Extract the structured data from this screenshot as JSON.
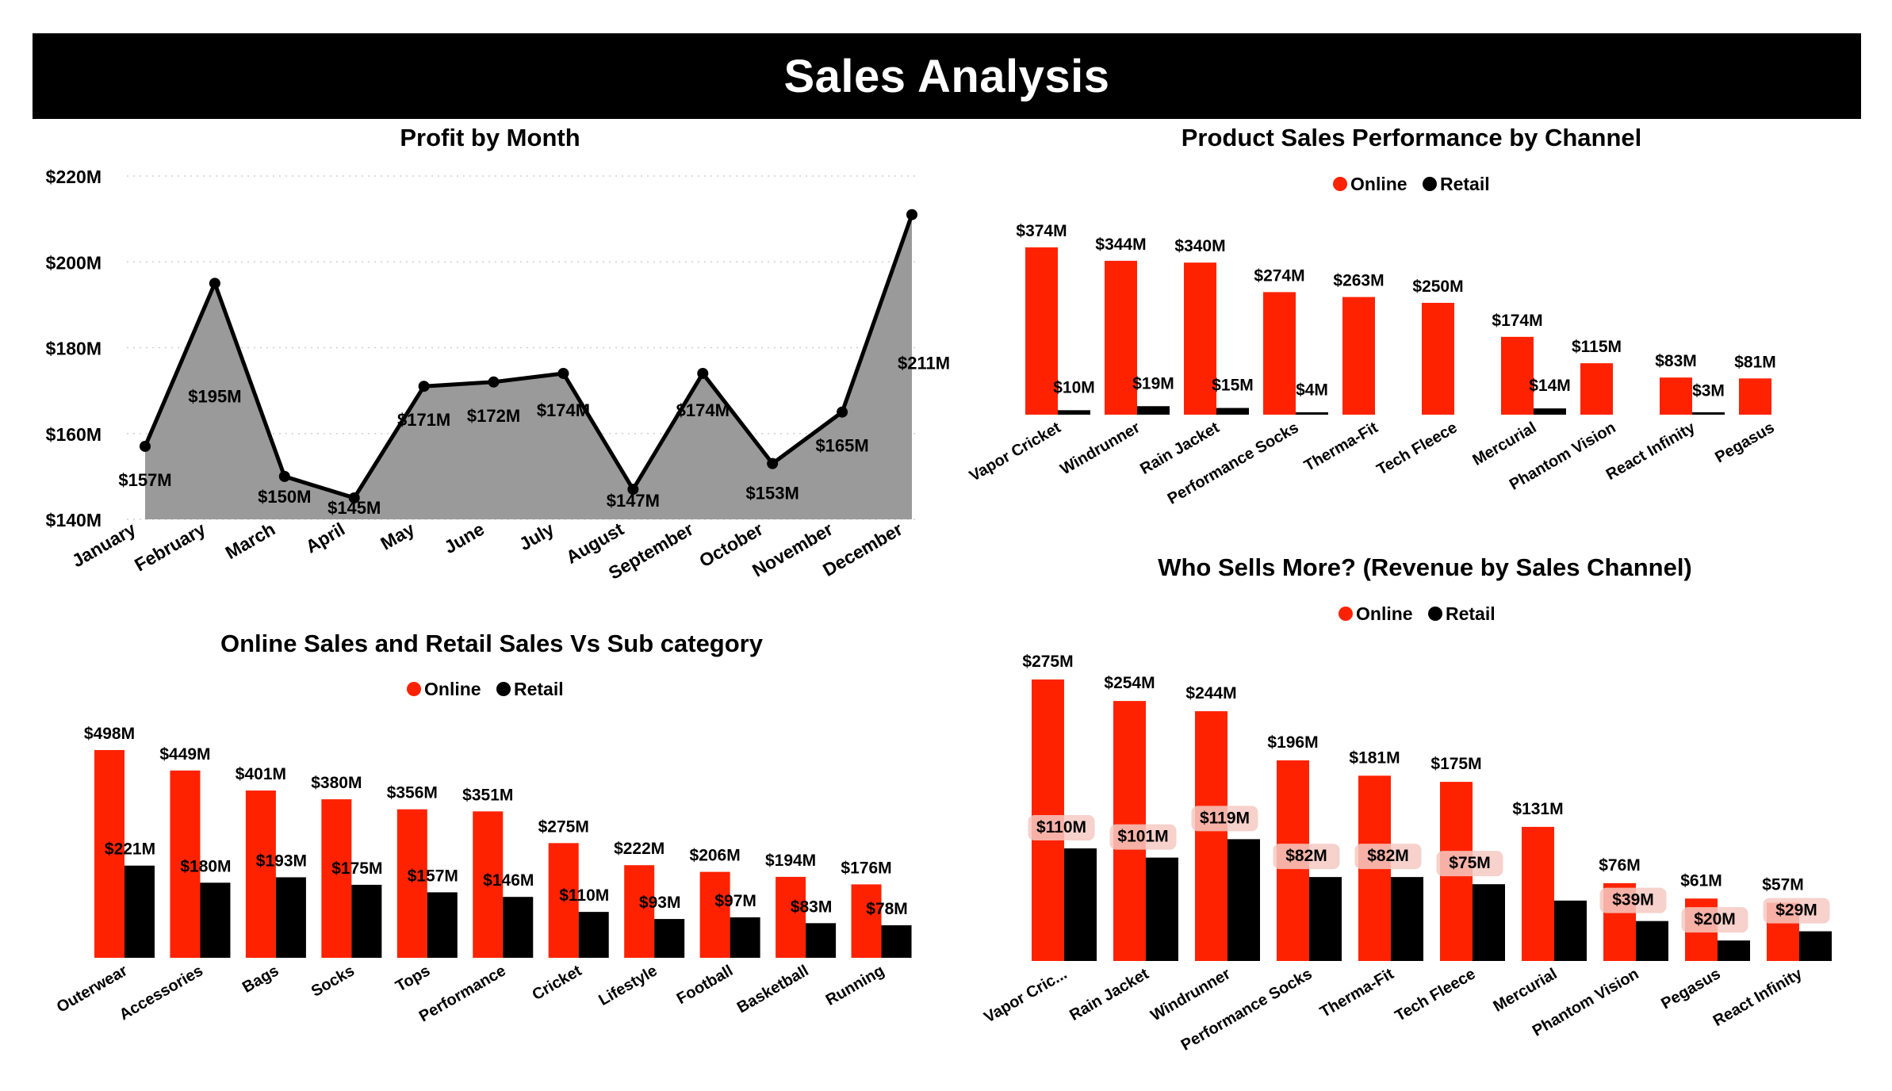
{
  "page_title": "Sales Analysis",
  "colors": {
    "online": "#ff2200",
    "retail": "#000000",
    "area": "#9a9a9a",
    "grid": "#cfcfcf",
    "label_bg": "#f6c9c2"
  },
  "chart_data": [
    {
      "id": "profit",
      "type": "area",
      "title": "Profit by Month",
      "categories": [
        "January",
        "February",
        "March",
        "April",
        "May",
        "June",
        "July",
        "August",
        "September",
        "October",
        "November",
        "December"
      ],
      "values": [
        157,
        195,
        150,
        145,
        171,
        172,
        174,
        147,
        174,
        153,
        165,
        211
      ],
      "labels": [
        "$157M",
        "$195M",
        "$150M",
        "$145M",
        "$171M",
        "$172M",
        "$174M",
        "$147M",
        "$174M",
        "$153M",
        "$165M",
        "$211M"
      ],
      "ylim": [
        140,
        220
      ],
      "yticks": [
        140,
        160,
        180,
        200,
        220
      ],
      "ytick_labels": [
        "$140M",
        "$160M",
        "$180M",
        "$200M",
        "$220M"
      ],
      "grid": true
    },
    {
      "id": "product",
      "type": "bar",
      "title": "Product Sales Performance by Channel",
      "legend": [
        "Online",
        "Retail"
      ],
      "categories": [
        "Vapor Cricket",
        "Windrunner",
        "Rain Jacket",
        "Performance Socks",
        "Therma-Fit",
        "Tech Fleece",
        "Mercurial",
        "Phantom Vision",
        "React Infinity",
        "Pegasus"
      ],
      "series": [
        {
          "name": "Online",
          "values": [
            374,
            344,
            340,
            274,
            263,
            250,
            174,
            115,
            83,
            81
          ],
          "labels": [
            "$374M",
            "$344M",
            "$340M",
            "$274M",
            "$263M",
            "$250M",
            "$174M",
            "$115M",
            "$83M",
            "$81M"
          ]
        },
        {
          "name": "Retail",
          "values": [
            10,
            19,
            15,
            4,
            0,
            0,
            14,
            0,
            3,
            0
          ],
          "labels": [
            "$10M",
            "$19M",
            "$15M",
            "$4M",
            "",
            "",
            "$14M",
            "",
            "$3M",
            ""
          ]
        }
      ]
    },
    {
      "id": "subcat",
      "type": "bar",
      "title": "Online Sales and Retail Sales Vs Sub category",
      "legend": [
        "Online",
        "Retail"
      ],
      "categories": [
        "Outerwear",
        "Accessories",
        "Bags",
        "Socks",
        "Tops",
        "Performance",
        "Cricket",
        "Lifestyle",
        "Football",
        "Basketball",
        "Running"
      ],
      "series": [
        {
          "name": "Online",
          "values": [
            498,
            449,
            401,
            380,
            356,
            351,
            275,
            222,
            206,
            194,
            176
          ],
          "labels": [
            "$498M",
            "$449M",
            "$401M",
            "$380M",
            "$356M",
            "$351M",
            "$275M",
            "$222M",
            "$206M",
            "$194M",
            "$176M"
          ]
        },
        {
          "name": "Retail",
          "values": [
            221,
            180,
            193,
            175,
            157,
            146,
            110,
            93,
            97,
            83,
            78
          ],
          "labels": [
            "$221M",
            "$180M",
            "$193M",
            "$175M",
            "$157M",
            "$146M",
            "$110M",
            "$93M",
            "$97M",
            "$83M",
            "$78M"
          ]
        }
      ]
    },
    {
      "id": "channel",
      "type": "bar",
      "title": "Who Sells More? (Revenue by Sales Channel)",
      "legend": [
        "Online",
        "Retail"
      ],
      "categories": [
        "Vapor Cric...",
        "Rain Jacket",
        "Windrunner",
        "Performance Socks",
        "Therma-Fit",
        "Tech Fleece",
        "Mercurial",
        "Phantom Vision",
        "Pegasus",
        "React Infinity"
      ],
      "series": [
        {
          "name": "Online",
          "values": [
            275,
            254,
            244,
            196,
            181,
            175,
            131,
            76,
            61,
            57
          ],
          "labels": [
            "$275M",
            "$254M",
            "$244M",
            "$196M",
            "$181M",
            "$175M",
            "$131M",
            "$76M",
            "$61M",
            "$57M"
          ]
        },
        {
          "name": "Retail",
          "values": [
            110,
            101,
            119,
            82,
            82,
            75,
            59,
            39,
            20,
            29
          ],
          "labels": [
            "$110M",
            "$101M",
            "$119M",
            "$82M",
            "$82M",
            "$75M",
            "",
            "$39M",
            "$20M",
            "$29M"
          ]
        }
      ]
    }
  ]
}
